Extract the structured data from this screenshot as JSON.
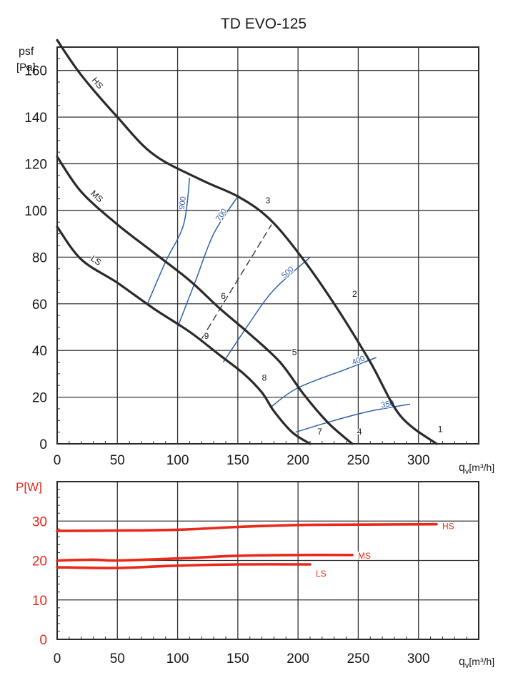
{
  "chart_data": [
    {
      "type": "line",
      "title": "TD EVO-125",
      "ylabel": "psf",
      "ylabel_unit": "[Pa]",
      "xlabel_main": "q",
      "xlabel_sub": "v",
      "xlabel_unit": "[m³/h]",
      "xlim": [
        0,
        350
      ],
      "ylim": [
        0,
        170
      ],
      "xticks": [
        0,
        50,
        100,
        150,
        200,
        250,
        300
      ],
      "yticks": [
        0,
        20,
        40,
        60,
        80,
        100,
        120,
        140,
        160
      ],
      "grid": true,
      "colors": {
        "curve": "#2a2a2a",
        "iso": "#3060a8",
        "grid": "#333333"
      },
      "series": [
        {
          "name": "HS",
          "points": [
            [
              0,
              173
            ],
            [
              20,
              158
            ],
            [
              50,
              140
            ],
            [
              80,
              124
            ],
            [
              120,
              113
            ],
            [
              150,
              106
            ],
            [
              175,
              97
            ],
            [
              200,
              82
            ],
            [
              230,
              60
            ],
            [
              260,
              35
            ],
            [
              285,
              12
            ],
            [
              315,
              0
            ]
          ]
        },
        {
          "name": "MS",
          "points": [
            [
              0,
              123
            ],
            [
              20,
              108
            ],
            [
              50,
              94
            ],
            [
              80,
              82
            ],
            [
              110,
              70
            ],
            [
              135,
              58
            ],
            [
              160,
              47
            ],
            [
              185,
              35
            ],
            [
              205,
              21
            ],
            [
              225,
              9
            ],
            [
              245,
              0
            ]
          ]
        },
        {
          "name": "LS",
          "points": [
            [
              0,
              93
            ],
            [
              20,
              79
            ],
            [
              50,
              69
            ],
            [
              80,
              58
            ],
            [
              110,
              48
            ],
            [
              135,
              38
            ],
            [
              155,
              30
            ],
            [
              170,
              22
            ],
            [
              180,
              14
            ],
            [
              195,
              5
            ],
            [
              210,
              0
            ]
          ]
        }
      ],
      "iso_lines": [
        {
          "label": "900",
          "points": [
            [
              75,
              60
            ],
            [
              90,
              78
            ],
            [
              105,
              94
            ],
            [
              110,
              114
            ]
          ]
        },
        {
          "label": "700",
          "points": [
            [
              100,
              50
            ],
            [
              115,
              70
            ],
            [
              130,
              90
            ],
            [
              150,
              106
            ]
          ]
        },
        {
          "label": "500",
          "points": [
            [
              138,
              35
            ],
            [
              160,
              52
            ],
            [
              180,
              66
            ],
            [
              210,
              80
            ]
          ]
        },
        {
          "label": "400",
          "points": [
            [
              178,
              16
            ],
            [
              200,
              24
            ],
            [
              240,
              32
            ],
            [
              265,
              37
            ]
          ]
        },
        {
          "label": "350",
          "points": [
            [
              198,
              5
            ],
            [
              230,
              10
            ],
            [
              260,
              14
            ],
            [
              293,
              17
            ]
          ]
        }
      ],
      "system_line": {
        "points": [
          [
            120,
            45
          ],
          [
            178,
            94
          ]
        ]
      },
      "point_labels": [
        {
          "label": "1",
          "x": 318,
          "y": 5
        },
        {
          "label": "2",
          "x": 247,
          "y": 63
        },
        {
          "label": "3",
          "x": 175,
          "y": 103
        },
        {
          "label": "4",
          "x": 251,
          "y": 4
        },
        {
          "label": "5",
          "x": 197,
          "y": 38
        },
        {
          "label": "6",
          "x": 138,
          "y": 62
        },
        {
          "label": "7",
          "x": 218,
          "y": 4
        },
        {
          "label": "8",
          "x": 172,
          "y": 27
        },
        {
          "label": "9",
          "x": 124,
          "y": 45
        }
      ]
    },
    {
      "type": "line",
      "ylabel": "P[W]",
      "xlabel_main": "q",
      "xlabel_sub": "v",
      "xlabel_unit": "[m³/h]",
      "xlim": [
        0,
        350
      ],
      "ylim": [
        0,
        40
      ],
      "xticks": [
        0,
        50,
        100,
        150,
        200,
        250,
        300
      ],
      "yticks": [
        0,
        10,
        20,
        30
      ],
      "grid": true,
      "colors": {
        "curve": "#e8291c",
        "axis_label": "#e8291c"
      },
      "series": [
        {
          "name": "HS",
          "points": [
            [
              0,
              27.5
            ],
            [
              50,
              27.6
            ],
            [
              100,
              27.8
            ],
            [
              150,
              28.5
            ],
            [
              200,
              29.0
            ],
            [
              250,
              29.1
            ],
            [
              315,
              29.2
            ]
          ]
        },
        {
          "name": "MS",
          "points": [
            [
              0,
              20.0
            ],
            [
              30,
              20.2
            ],
            [
              50,
              20.0
            ],
            [
              100,
              20.5
            ],
            [
              150,
              21.2
            ],
            [
              200,
              21.4
            ],
            [
              245,
              21.4
            ]
          ]
        },
        {
          "name": "LS",
          "points": [
            [
              0,
              18.3
            ],
            [
              50,
              18.1
            ],
            [
              100,
              18.7
            ],
            [
              150,
              19.0
            ],
            [
              210,
              19.0
            ]
          ]
        }
      ]
    }
  ]
}
